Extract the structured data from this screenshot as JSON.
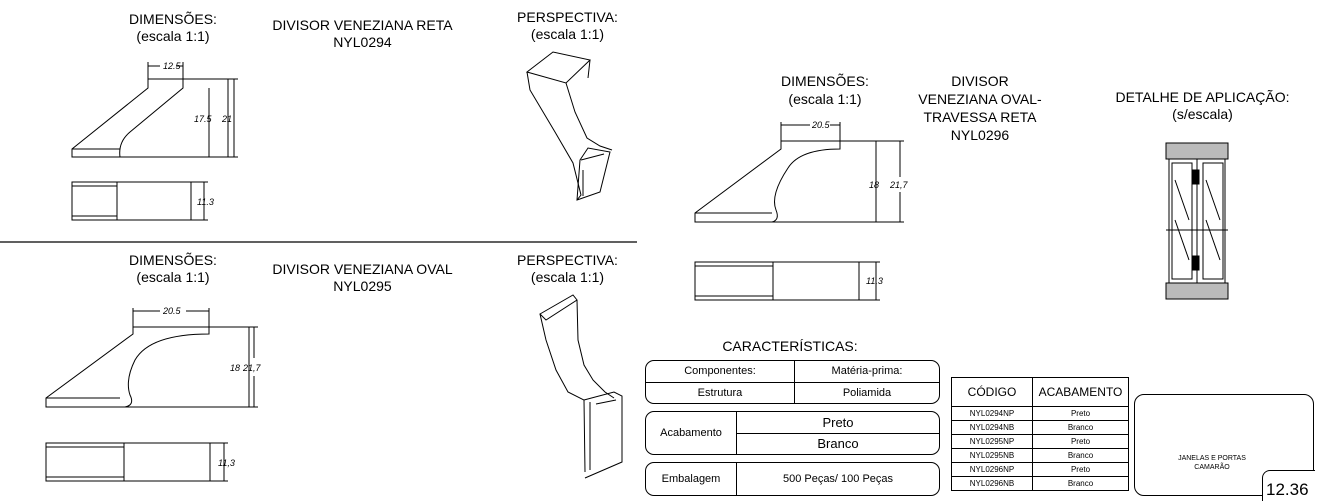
{
  "top_left": {
    "dims_title": "DIMENSÕES:",
    "dims_scale": "(escala 1:1)",
    "name": "DIVISOR VENEZIANA RETA",
    "code": "NYL0294",
    "persp_title": "PERSPECTIVA:",
    "persp_scale": "(escala 1:1)",
    "dim_top": "12.5",
    "dim_inner": "17.5",
    "dim_outer": "21",
    "dim_width": "11.3"
  },
  "bottom_left": {
    "dims_title": "DIMENSÕES:",
    "dims_scale": "(escala 1:1)",
    "name": "DIVISOR VENEZIANA OVAL",
    "code": "NYL0295",
    "persp_title": "PERSPECTIVA:",
    "persp_scale": "(escala 1:1)",
    "dim_top": "20.5",
    "dim_inner": "18",
    "dim_outer": "21,7",
    "dim_width": "11,3"
  },
  "right": {
    "dims_title": "DIMENSÕES:",
    "dims_scale": "(escala 1:1)",
    "name_line1": "DIVISOR",
    "name_line2": "VENEZIANA OVAL-",
    "name_line3": "TRAVESSA RETA",
    "code": "NYL0296",
    "detail_title": "DETALHE DE APLICAÇÃO:",
    "detail_scale": "(s/escala)",
    "dim_top": "20.5",
    "dim_inner": "18",
    "dim_outer": "21,7",
    "dim_width": "11,3"
  },
  "characteristics": {
    "title": "CARACTERÍSTICAS:",
    "components_label": "Componentes:",
    "material_label": "Matéria-prima:",
    "component": "Estrutura",
    "material": "Poliamida",
    "finish_label": "Acabamento",
    "finish_1": "Preto",
    "finish_2": "Branco",
    "packaging_label": "Embalagem",
    "packaging_value": "500 Peças/ 100 Peças"
  },
  "codes_table": {
    "headers": [
      "CÓDIGO",
      "ACABAMENTO"
    ],
    "rows": [
      [
        "NYL0294NP",
        "Preto"
      ],
      [
        "NYL0294NB",
        "Branco"
      ],
      [
        "NYL0295NP",
        "Preto"
      ],
      [
        "NYL0295NB",
        "Branco"
      ],
      [
        "NYL0296NP",
        "Preto"
      ],
      [
        "NYL0296NB",
        "Branco"
      ]
    ]
  },
  "logo": {
    "line1": "JANELAS E PORTAS",
    "line2": "CAMARÃO"
  },
  "page_number": "12.36"
}
